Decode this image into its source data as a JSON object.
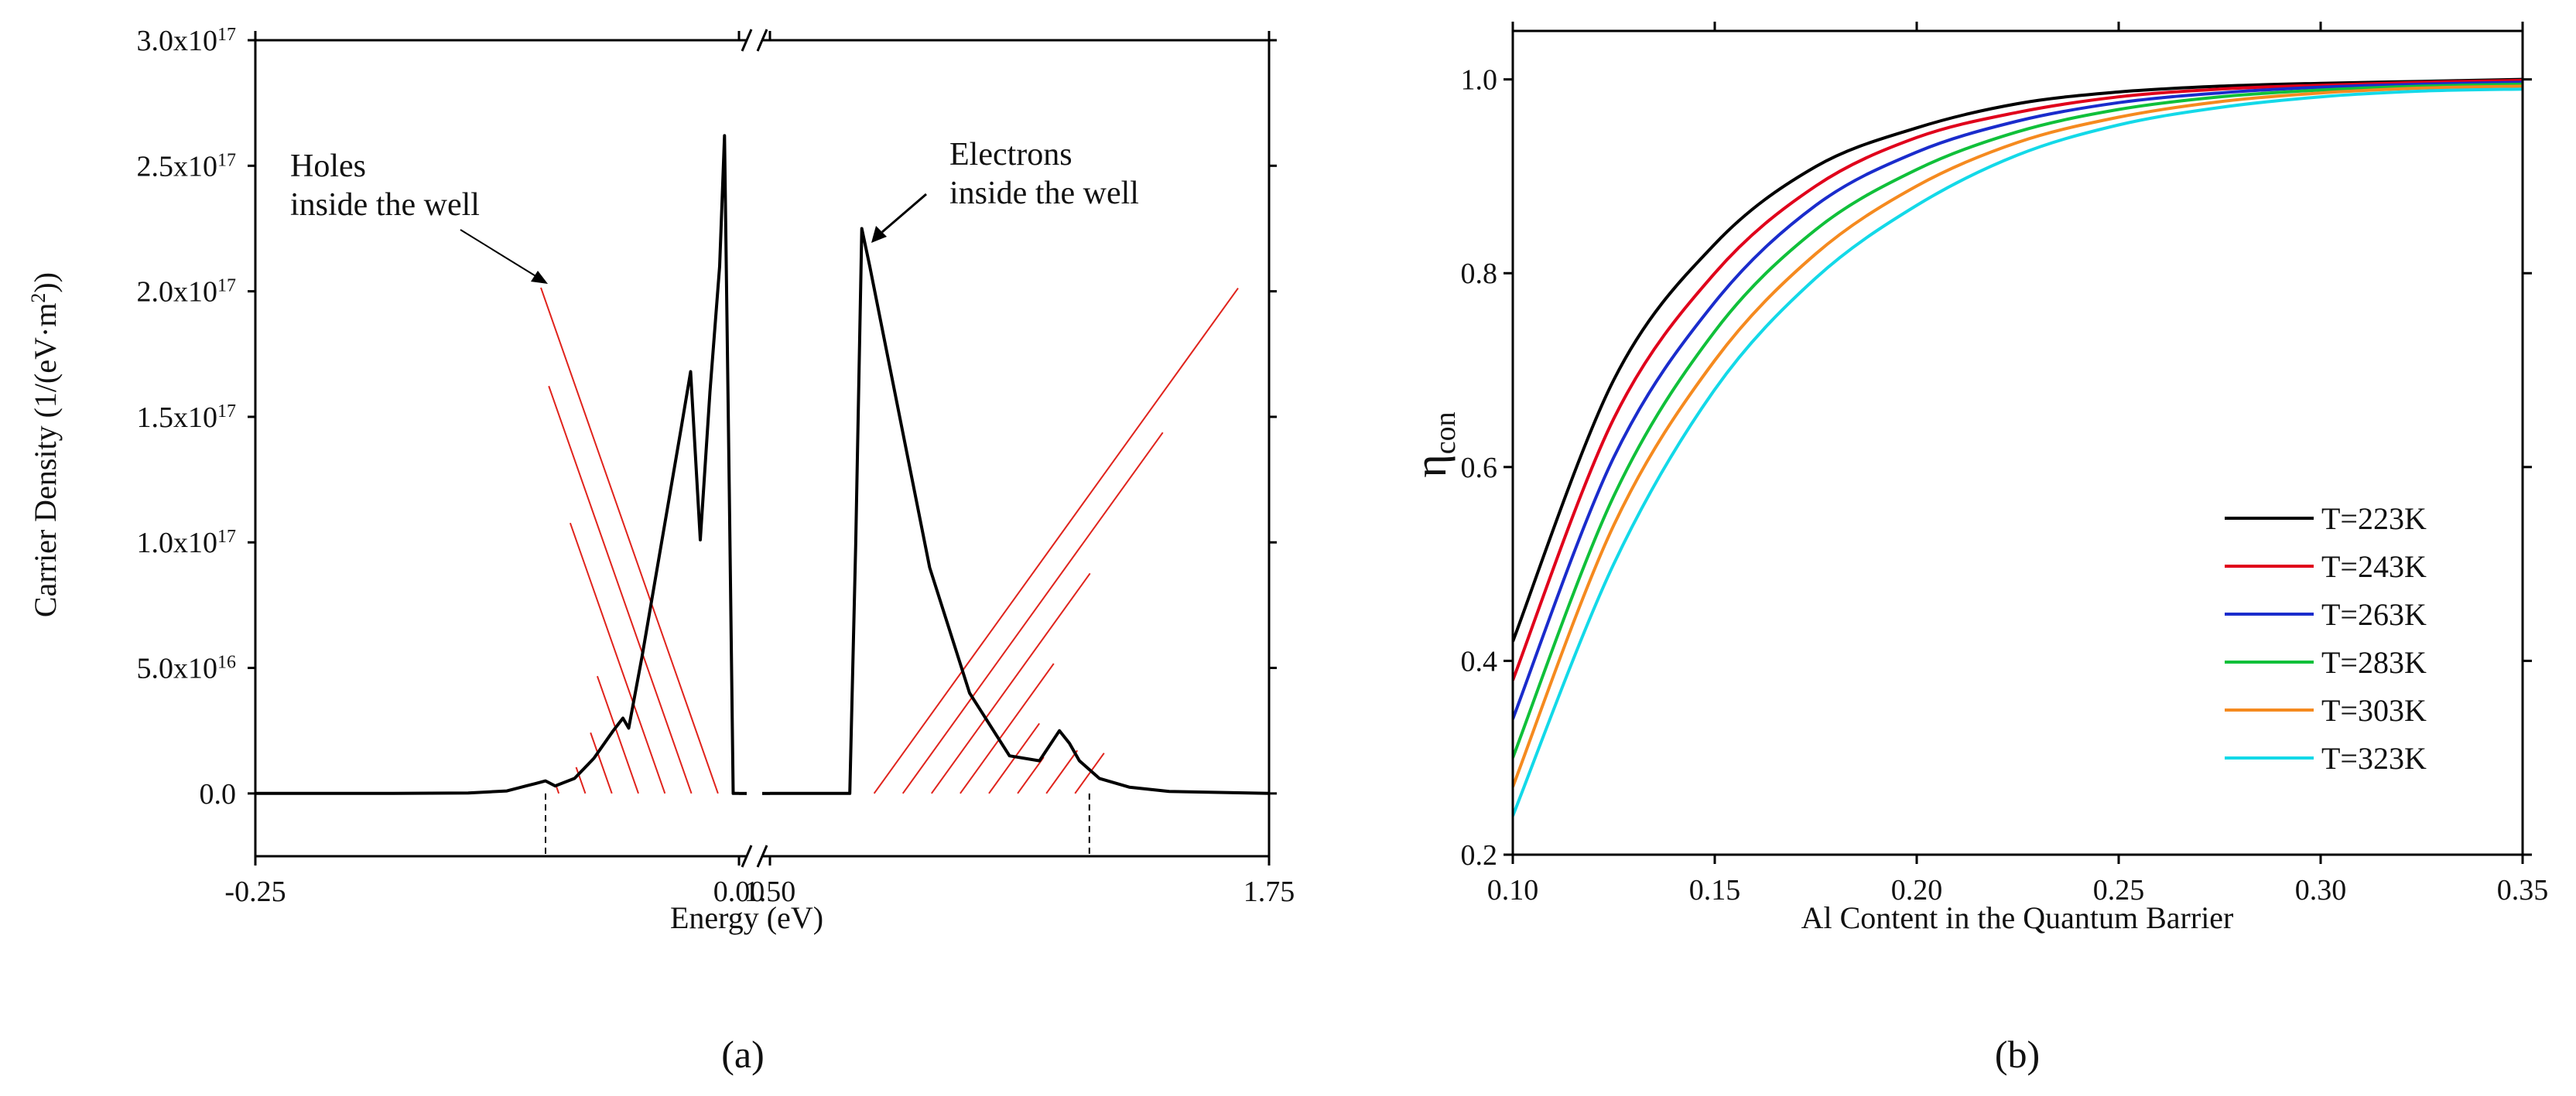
{
  "panels": {
    "a": {
      "label": "(a)"
    },
    "b": {
      "label": "(b)"
    }
  },
  "colors": {
    "axis": "#000000",
    "hatch": "#e0231c",
    "curve": "#000000"
  },
  "chart_data": [
    {
      "type": "line",
      "panel": "(a)",
      "xlabel": "Energy (eV)",
      "ylabel_prefix": "Carrier Density (1/(eV·m",
      "ylabel_sup": "2",
      "ylabel_suffix": "))",
      "ylim": [
        -2.5e+16,
        3e+17
      ],
      "axis_break": true,
      "x_segments": [
        {
          "xlim": [
            -0.25,
            0.0
          ],
          "ticks": [
            -0.25,
            0.0
          ],
          "tick_labels": [
            "-0.25",
            "0.00"
          ]
        },
        {
          "xlim": [
            1.5,
            1.75
          ],
          "ticks": [
            1.5,
            1.75
          ],
          "tick_labels": [
            "1.50",
            "1.75"
          ]
        }
      ],
      "y_ticks": [
        {
          "value": 0,
          "mantissa": "0.0",
          "exp": ""
        },
        {
          "value": 5e+16,
          "mantissa": "5.0x10",
          "exp": "16"
        },
        {
          "value": 1e+17,
          "mantissa": "1.0x10",
          "exp": "17"
        },
        {
          "value": 1.5e+17,
          "mantissa": "1.5x10",
          "exp": "17"
        },
        {
          "value": 2e+17,
          "mantissa": "2.0x10",
          "exp": "17"
        },
        {
          "value": 2.5e+17,
          "mantissa": "2.5x10",
          "exp": "17"
        },
        {
          "value": 3e+17,
          "mantissa": "3.0x10",
          "exp": "17"
        }
      ],
      "series": [
        {
          "name": "Holes inside the well",
          "segment": 0,
          "x": [
            -0.25,
            -0.18,
            -0.14,
            -0.12,
            -0.11,
            -0.105,
            -0.1,
            -0.095,
            -0.085,
            -0.075,
            -0.065,
            -0.06,
            -0.057,
            -0.05,
            -0.04,
            -0.03,
            -0.025,
            -0.02,
            -0.015,
            -0.01,
            -0.0075,
            -0.005,
            -0.003,
            0.0
          ],
          "y": [
            0,
            0,
            200000000000000.0,
            1000000000000000.0,
            3000000000000000.0,
            4000000000000000.0,
            5000000000000000.0,
            3000000000000000.0,
            6000000000000000.0,
            1.4e+16,
            2.5e+16,
            3e+16,
            2.6e+16,
            5.5e+16,
            1e+17,
            1.45e+17,
            1.68e+17,
            1.01e+17,
            1.6e+17,
            2.1e+17,
            2.62e+17,
            1.2e+17,
            0,
            0
          ]
        },
        {
          "name": "Electrons inside the well",
          "segment": 1,
          "x": [
            1.5,
            1.525,
            1.54,
            1.543,
            1.546,
            1.55,
            1.56,
            1.58,
            1.6,
            1.62,
            1.635,
            1.645,
            1.65,
            1.655,
            1.665,
            1.68,
            1.7,
            1.75
          ],
          "y": [
            0,
            0,
            0,
            1e+17,
            2.25e+17,
            2.1e+17,
            1.7e+17,
            9e+16,
            4e+16,
            1.5e+16,
            1.3e+16,
            2.5e+16,
            2e+16,
            1.3e+16,
            6000000000000000.0,
            2500000000000000.0,
            800000000000000.0,
            0
          ]
        }
      ],
      "limits": [
        {
          "segment": 0,
          "x": -0.1
        },
        {
          "segment": 1,
          "x": 1.66
        }
      ],
      "annotations": [
        {
          "lines": [
            "Holes",
            "inside the well"
          ],
          "target_series": 0
        },
        {
          "lines": [
            "Electrons",
            "inside the well"
          ],
          "target_series": 1
        }
      ]
    },
    {
      "type": "line",
      "panel": "(b)",
      "xlabel": "Al Content in the Quantum Barrier",
      "ylabel_main": "η",
      "ylabel_sub": "con",
      "xlim": [
        0.1,
        0.35
      ],
      "ylim": [
        0.2,
        1.05
      ],
      "x_ticks": [
        0.1,
        0.15,
        0.2,
        0.25,
        0.3,
        0.35
      ],
      "x_tick_labels": [
        "0.10",
        "0.15",
        "0.20",
        "0.25",
        "0.30",
        "0.35"
      ],
      "y_ticks": [
        0.2,
        0.4,
        0.6,
        0.8,
        1.0
      ],
      "y_tick_labels": [
        "0.2",
        "0.4",
        "0.6",
        "0.8",
        "1.0"
      ],
      "legend_position": "lower-right",
      "x": [
        0.1,
        0.125,
        0.15,
        0.175,
        0.2,
        0.225,
        0.25,
        0.275,
        0.3,
        0.325,
        0.35
      ],
      "series": [
        {
          "name": "T=223K",
          "color": "#000000",
          "values": [
            0.42,
            0.69,
            0.83,
            0.91,
            0.95,
            0.975,
            0.987,
            0.993,
            0.996,
            0.998,
            1.0
          ]
        },
        {
          "name": "T=243K",
          "color": "#e0001b",
          "values": [
            0.38,
            0.65,
            0.8,
            0.89,
            0.94,
            0.966,
            0.982,
            0.99,
            0.994,
            0.997,
            0.999
          ]
        },
        {
          "name": "T=263K",
          "color": "#1a2ccc",
          "values": [
            0.34,
            0.61,
            0.77,
            0.87,
            0.925,
            0.957,
            0.976,
            0.986,
            0.992,
            0.995,
            0.997
          ]
        },
        {
          "name": "T=283K",
          "color": "#10c03a",
          "values": [
            0.3,
            0.57,
            0.74,
            0.845,
            0.907,
            0.946,
            0.969,
            0.982,
            0.989,
            0.993,
            0.995
          ]
        },
        {
          "name": "T=303K",
          "color": "#f58a1f",
          "values": [
            0.27,
            0.54,
            0.71,
            0.82,
            0.89,
            0.935,
            0.961,
            0.977,
            0.986,
            0.991,
            0.993
          ]
        },
        {
          "name": "T=323K",
          "color": "#13d9e8",
          "values": [
            0.24,
            0.5,
            0.68,
            0.795,
            0.87,
            0.922,
            0.953,
            0.971,
            0.982,
            0.988,
            0.99
          ]
        }
      ]
    }
  ]
}
